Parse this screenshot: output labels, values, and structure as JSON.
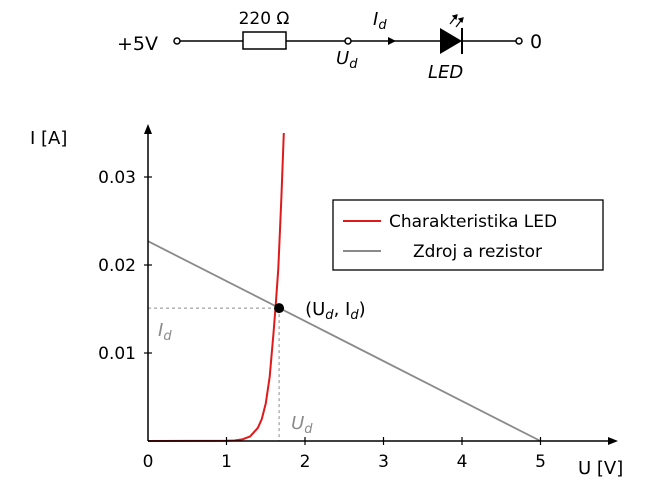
{
  "circuit": {
    "supply_label": "+5V",
    "resistor_label": "220 Ω",
    "current_label": "I",
    "current_sub": "d",
    "node_label": "U",
    "node_sub": "d",
    "led_label": "LED",
    "ground_label": "0"
  },
  "chart_data": {
    "type": "line",
    "title": "",
    "xlabel": "U [V]",
    "ylabel": "I [A]",
    "xlim": [
      0,
      5.8
    ],
    "ylim": [
      0,
      0.035
    ],
    "xticks": [
      0,
      1,
      2,
      3,
      4,
      5
    ],
    "yticks": [
      0.01,
      0.02,
      0.03
    ],
    "ytick_labels": [
      "0.01",
      "0.02",
      "0.03"
    ],
    "xtick_labels": [
      "0",
      "1",
      "2",
      "3",
      "4",
      "5"
    ],
    "grid": false,
    "legend_position": "right",
    "series": [
      {
        "name": "Charakteristika LED",
        "color": "#e0191b",
        "x": [
          0,
          1.0,
          1.1,
          1.2,
          1.3,
          1.4,
          1.45,
          1.5,
          1.55,
          1.6,
          1.63,
          1.66,
          1.7,
          1.73
        ],
        "y": [
          0,
          2e-05,
          6e-05,
          0.00018,
          0.00052,
          0.0015,
          0.0025,
          0.0043,
          0.0073,
          0.0124,
          0.0159,
          0.0196,
          0.0277,
          0.035
        ]
      },
      {
        "name": "Zdroj a rezistor",
        "color": "#8a8a8a",
        "x": [
          0,
          5
        ],
        "y": [
          0.0227,
          0
        ]
      }
    ],
    "operating_point": {
      "x": 1.67,
      "y": 0.0151,
      "label": "(U",
      "label_sub1": "d",
      "label_mid": ", I",
      "label_sub2": "d",
      "label_end": ")"
    },
    "guide_labels": {
      "y_guide": "I",
      "y_guide_sub": "d",
      "x_guide": "U",
      "x_guide_sub": "d"
    }
  }
}
